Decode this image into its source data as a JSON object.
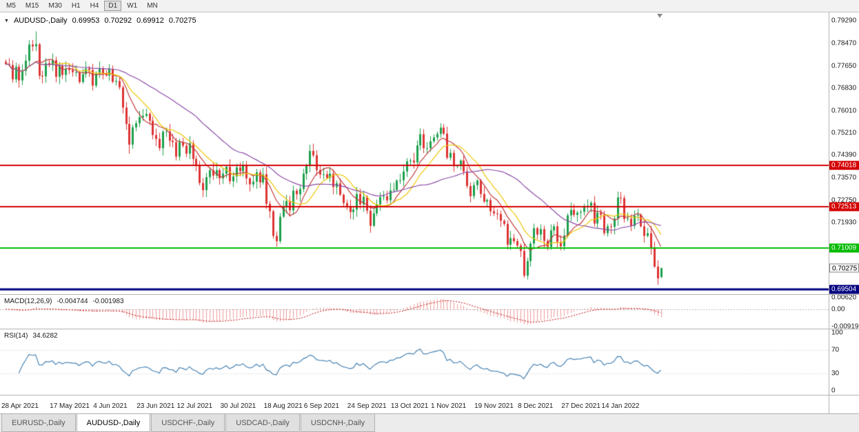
{
  "icons": {
    "caret_down": "▼"
  },
  "colors": {
    "up": "#1ca04c",
    "down": "#dd3333",
    "macd_hist": "#e03a3a",
    "macd_signal": "#c00000",
    "macd_zero": "#b8b8b8",
    "rsi_line": "#4682b4",
    "rsi_level": "#c8c8c8"
  },
  "toolbar": {
    "timeframes": [
      "M5",
      "M15",
      "M30",
      "H1",
      "H4",
      "D1",
      "W1",
      "MN"
    ],
    "active": "D1"
  },
  "info_line": {
    "symbol": "AUDUSD-,Daily",
    "open": "0.69953",
    "high": "0.70292",
    "low": "0.69912",
    "close": "0.70275"
  },
  "tabs": [
    {
      "label": "EURUSD-,Daily",
      "active": false
    },
    {
      "label": "AUDUSD-,Daily",
      "active": true
    },
    {
      "label": "USDCHF-,Daily",
      "active": false
    },
    {
      "label": "USDCAD-,Daily",
      "active": false
    },
    {
      "label": "USDCNH-,Daily",
      "active": false
    }
  ],
  "chart_data": {
    "type": "candlestick",
    "symbol": "AUDUSD",
    "timeframe": "Daily",
    "price_range": [
      0.693,
      0.796
    ],
    "first_open": 0.778,
    "closes": [
      0.7772,
      0.7768,
      0.7716,
      0.7762,
      0.7712,
      0.7747,
      0.7784,
      0.7843,
      0.7836,
      0.7844,
      0.7729,
      0.7727,
      0.7775,
      0.7768,
      0.7786,
      0.7725,
      0.7765,
      0.7732,
      0.7754,
      0.775,
      0.7742,
      0.7742,
      0.7706,
      0.7735,
      0.7755,
      0.775,
      0.7693,
      0.7738,
      0.7755,
      0.7738,
      0.773,
      0.7754,
      0.7707,
      0.771,
      0.7687,
      0.7613,
      0.7553,
      0.7478,
      0.7541,
      0.7556,
      0.7578,
      0.7583,
      0.759,
      0.7565,
      0.7513,
      0.7499,
      0.7465,
      0.7525,
      0.7526,
      0.7492,
      0.7487,
      0.7434,
      0.7487,
      0.7474,
      0.7445,
      0.7483,
      0.7426,
      0.74,
      0.7338,
      0.7312,
      0.7359,
      0.7385,
      0.7365,
      0.7385,
      0.7355,
      0.7372,
      0.7397,
      0.7344,
      0.7362,
      0.7395,
      0.7381,
      0.7403,
      0.7355,
      0.7333,
      0.7343,
      0.7377,
      0.734,
      0.737,
      0.7262,
      0.7235,
      0.7145,
      0.7126,
      0.7215,
      0.7254,
      0.7272,
      0.7238,
      0.731,
      0.7297,
      0.7316,
      0.7372,
      0.74,
      0.7455,
      0.7439,
      0.7385,
      0.7369,
      0.737,
      0.7356,
      0.7372,
      0.7323,
      0.7337,
      0.7295,
      0.7265,
      0.7252,
      0.7232,
      0.7241,
      0.7298,
      0.726,
      0.7288,
      0.7237,
      0.7182,
      0.7227,
      0.726,
      0.7287,
      0.729,
      0.7275,
      0.7311,
      0.7313,
      0.7347,
      0.7348,
      0.738,
      0.7417,
      0.742,
      0.7413,
      0.7475,
      0.7516,
      0.7465,
      0.7465,
      0.749,
      0.7504,
      0.7517,
      0.754,
      0.7518,
      0.743,
      0.7448,
      0.7399,
      0.7401,
      0.742,
      0.738,
      0.7327,
      0.729,
      0.733,
      0.7347,
      0.7298,
      0.727,
      0.7276,
      0.7235,
      0.7227,
      0.7225,
      0.72,
      0.7189,
      0.7113,
      0.7137,
      0.7126,
      0.711,
      0.709,
      0.7,
      0.7053,
      0.7117,
      0.7173,
      0.715,
      0.717,
      0.7127,
      0.7105,
      0.7165,
      0.718,
      0.7123,
      0.7107,
      0.7146,
      0.722,
      0.724,
      0.7222,
      0.723,
      0.7233,
      0.7249,
      0.7255,
      0.7266,
      0.719,
      0.723,
      0.7222,
      0.7155,
      0.718,
      0.7178,
      0.7208,
      0.7285,
      0.7283,
      0.7207,
      0.7208,
      0.7182,
      0.7219,
      0.7222,
      0.718,
      0.7145,
      0.7155,
      0.71,
      0.7033,
      0.699,
      0.70275
    ],
    "overrides": [
      {
        "i": 9,
        "h": 0.7891
      },
      {
        "i": 37,
        "l": 0.7445
      },
      {
        "i": 81,
        "l": 0.7106
      },
      {
        "i": 91,
        "h": 0.7478
      },
      {
        "i": 130,
        "h": 0.7556
      },
      {
        "i": 155,
        "l": 0.6993
      },
      {
        "i": 195,
        "l": 0.6967
      },
      {
        "i": 196,
        "o": 0.69953,
        "h": 0.70292,
        "l": 0.69912,
        "c": 0.70275
      }
    ],
    "moving_averages": [
      {
        "period": 8,
        "color": "#c23a3a"
      },
      {
        "period": 13,
        "color": "#edc600"
      },
      {
        "period": 34,
        "color": "#8b4aa6"
      }
    ],
    "horizontal_levels": [
      {
        "name": "resistance-upper",
        "price": 0.74018,
        "label": "0.74018",
        "color": "#d40000",
        "width": 2
      },
      {
        "name": "resistance-lower",
        "price": 0.72513,
        "label": "0.72513",
        "color": "#d40000",
        "width": 2
      },
      {
        "name": "support-green",
        "price": 0.71009,
        "label": "0.71009",
        "color": "#00bb00",
        "width": 2
      },
      {
        "name": "support-navy",
        "price": 0.69504,
        "label": "0.69504",
        "color": "#000080",
        "width": 3
      }
    ],
    "current_price": {
      "price": 0.70275,
      "label": "0.70275"
    },
    "y_ticks": [
      {
        "v": 0.7929,
        "label": "0.79290"
      },
      {
        "v": 0.7847,
        "label": "0.78470"
      },
      {
        "v": 0.7765,
        "label": "0.77650"
      },
      {
        "v": 0.7683,
        "label": "0.76830"
      },
      {
        "v": 0.7601,
        "label": "0.76010"
      },
      {
        "v": 0.7521,
        "label": "0.75210"
      },
      {
        "v": 0.7439,
        "label": "0.74390"
      },
      {
        "v": 0.7357,
        "label": "0.73570"
      },
      {
        "v": 0.7275,
        "label": "0.72750"
      },
      {
        "v": 0.7193,
        "label": "0.71930"
      }
    ],
    "x_labels": [
      {
        "label": "28 Apr 2021",
        "i": 0
      },
      {
        "label": "17 May 2021",
        "i": 19
      },
      {
        "label": "4 Jun 2021",
        "i": 32
      },
      {
        "label": "23 Jun 2021",
        "i": 45
      },
      {
        "label": "12 Jul 2021",
        "i": 57
      },
      {
        "label": "30 Jul 2021",
        "i": 70
      },
      {
        "label": "18 Aug 2021",
        "i": 83
      },
      {
        "label": "6 Sep 2021",
        "i": 95
      },
      {
        "label": "24 Sep 2021",
        "i": 108
      },
      {
        "label": "13 Oct 2021",
        "i": 121
      },
      {
        "label": "1 Nov 2021",
        "i": 133
      },
      {
        "label": "19 Nov 2021",
        "i": 146
      },
      {
        "label": "8 Dec 2021",
        "i": 159
      },
      {
        "label": "27 Dec 2021",
        "i": 172
      },
      {
        "label": "14 Jan 2022",
        "i": 184
      }
    ],
    "macd": {
      "name": "MACD(12,26,9)",
      "params": [
        12,
        26,
        9
      ],
      "main": "-0.004744",
      "signal": "-0.001983",
      "axis": [
        {
          "v": 0.0062,
          "label": "0.00620"
        },
        {
          "v": 0,
          "label": "0.00"
        },
        {
          "v": -0.00919,
          "label": "-0.00919"
        }
      ]
    },
    "rsi": {
      "name": "RSI(14)",
      "period": 14,
      "value": "34.6282",
      "axis": [
        100,
        70,
        30,
        0
      ],
      "levels": [
        30,
        70
      ]
    }
  }
}
